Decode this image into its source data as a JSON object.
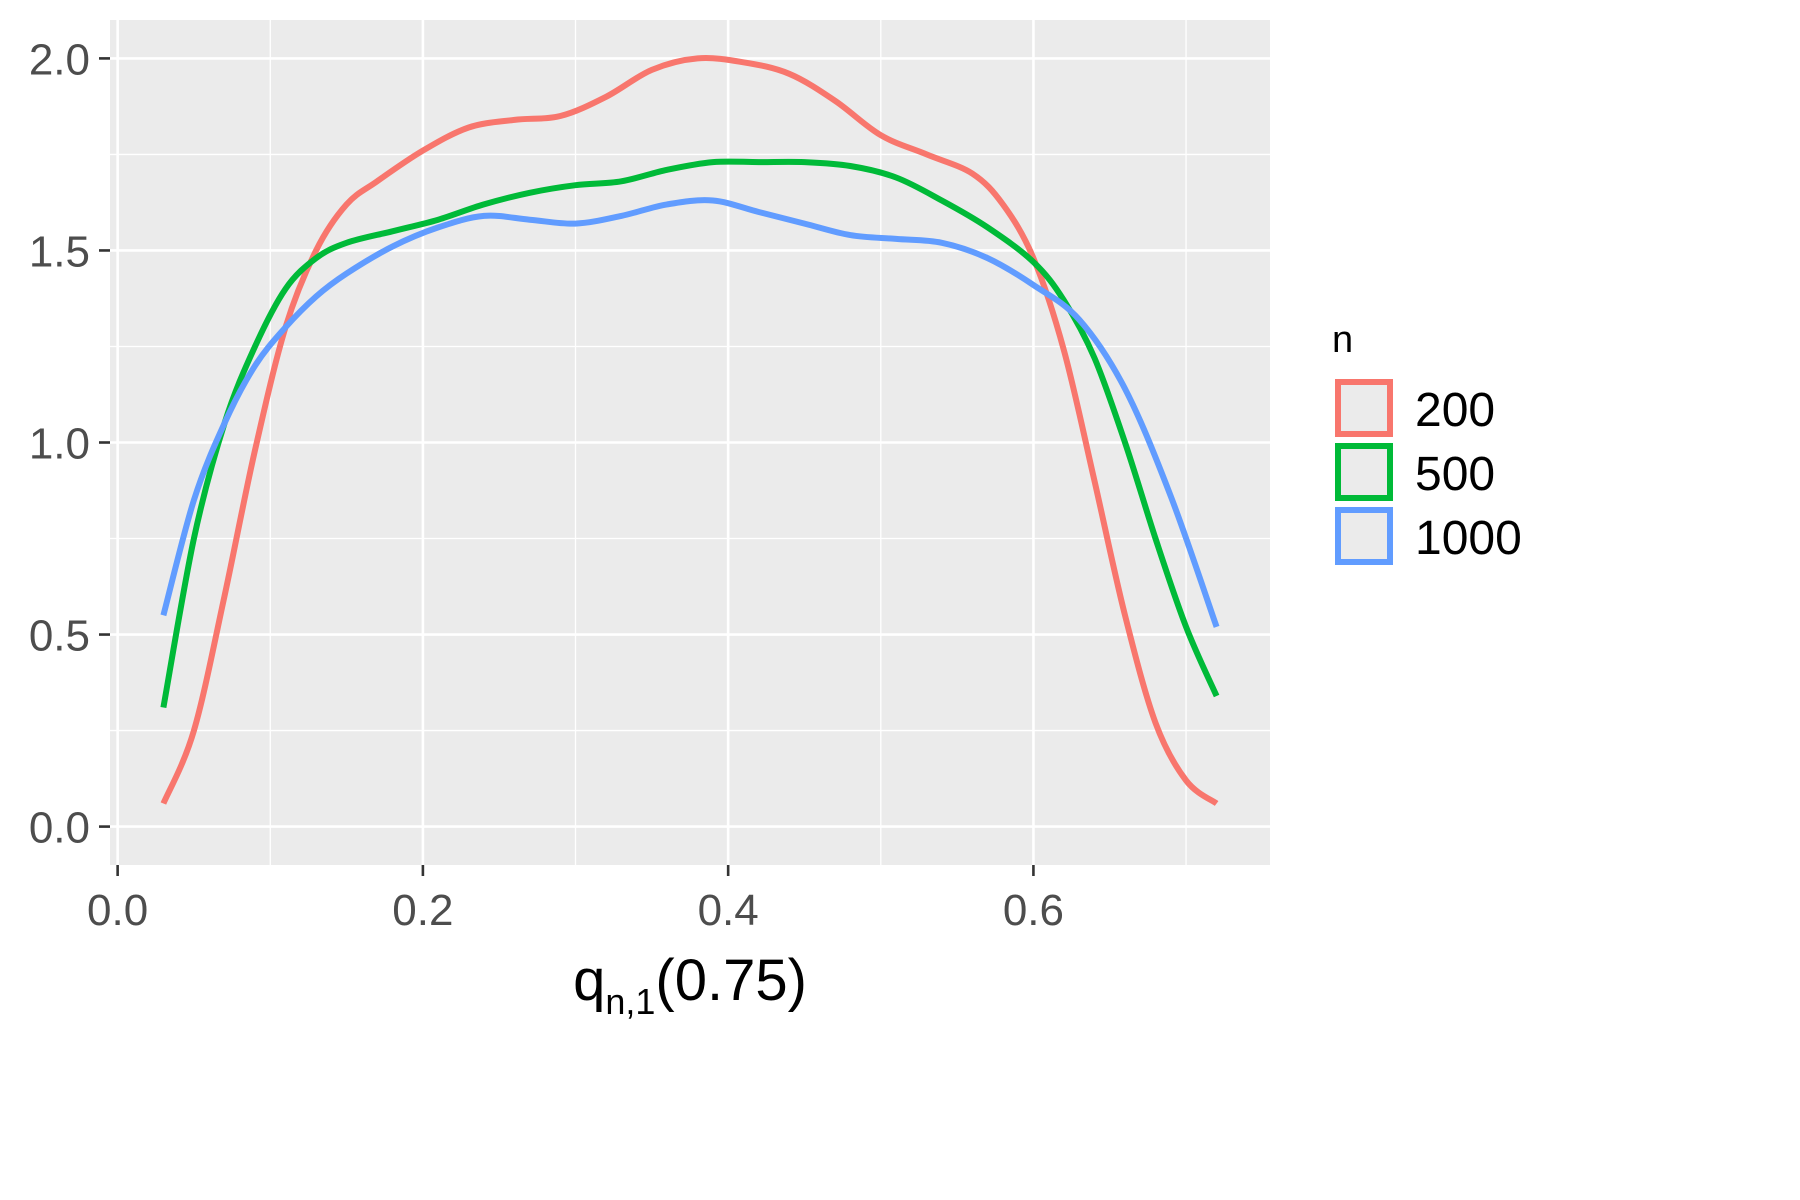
{
  "chart_data": {
    "type": "line",
    "title": "",
    "xlabel": {
      "main": "q",
      "subscript": "n,1",
      "suffix": "(0.75)"
    },
    "ylabel": "",
    "xlim": [
      -0.005,
      0.755
    ],
    "ylim": [
      -0.1,
      2.1
    ],
    "x_ticks": [
      0.0,
      0.2,
      0.4,
      0.6
    ],
    "x_tick_labels": [
      "0.0",
      "0.2",
      "0.4",
      "0.6"
    ],
    "y_ticks": [
      0.0,
      0.5,
      1.0,
      1.5,
      2.0
    ],
    "y_tick_labels": [
      "0.0",
      "0.5",
      "1.0",
      "1.5",
      "2.0"
    ],
    "grid": true,
    "legend": {
      "title": "n",
      "placement": "right"
    },
    "series": [
      {
        "name": "200",
        "color": "#F8766D",
        "x": [
          0.03,
          0.05,
          0.07,
          0.09,
          0.11,
          0.13,
          0.15,
          0.17,
          0.2,
          0.23,
          0.26,
          0.29,
          0.32,
          0.35,
          0.38,
          0.41,
          0.44,
          0.47,
          0.5,
          0.53,
          0.56,
          0.58,
          0.6,
          0.62,
          0.64,
          0.66,
          0.68,
          0.7,
          0.72
        ],
        "y": [
          0.06,
          0.25,
          0.6,
          0.98,
          1.3,
          1.5,
          1.62,
          1.68,
          1.76,
          1.82,
          1.84,
          1.85,
          1.9,
          1.97,
          2.0,
          1.99,
          1.96,
          1.89,
          1.8,
          1.75,
          1.7,
          1.62,
          1.48,
          1.24,
          0.9,
          0.55,
          0.27,
          0.12,
          0.06
        ]
      },
      {
        "name": "500",
        "color": "#00BA38",
        "x": [
          0.03,
          0.05,
          0.07,
          0.09,
          0.11,
          0.13,
          0.15,
          0.18,
          0.21,
          0.24,
          0.27,
          0.3,
          0.33,
          0.36,
          0.39,
          0.42,
          0.45,
          0.48,
          0.51,
          0.54,
          0.57,
          0.6,
          0.62,
          0.64,
          0.66,
          0.68,
          0.7,
          0.72
        ],
        "y": [
          0.31,
          0.75,
          1.05,
          1.25,
          1.4,
          1.48,
          1.52,
          1.55,
          1.58,
          1.62,
          1.65,
          1.67,
          1.68,
          1.71,
          1.73,
          1.73,
          1.73,
          1.72,
          1.69,
          1.63,
          1.56,
          1.47,
          1.37,
          1.22,
          1.0,
          0.75,
          0.52,
          0.34
        ]
      },
      {
        "name": "1000",
        "color": "#619CFF",
        "x": [
          0.03,
          0.05,
          0.07,
          0.09,
          0.11,
          0.13,
          0.15,
          0.18,
          0.21,
          0.24,
          0.27,
          0.3,
          0.33,
          0.36,
          0.39,
          0.42,
          0.45,
          0.48,
          0.51,
          0.54,
          0.57,
          0.6,
          0.63,
          0.66,
          0.69,
          0.72
        ],
        "y": [
          0.55,
          0.85,
          1.05,
          1.2,
          1.3,
          1.38,
          1.44,
          1.51,
          1.56,
          1.59,
          1.58,
          1.57,
          1.59,
          1.62,
          1.63,
          1.6,
          1.57,
          1.54,
          1.53,
          1.52,
          1.48,
          1.41,
          1.32,
          1.14,
          0.86,
          0.52
        ]
      }
    ]
  }
}
